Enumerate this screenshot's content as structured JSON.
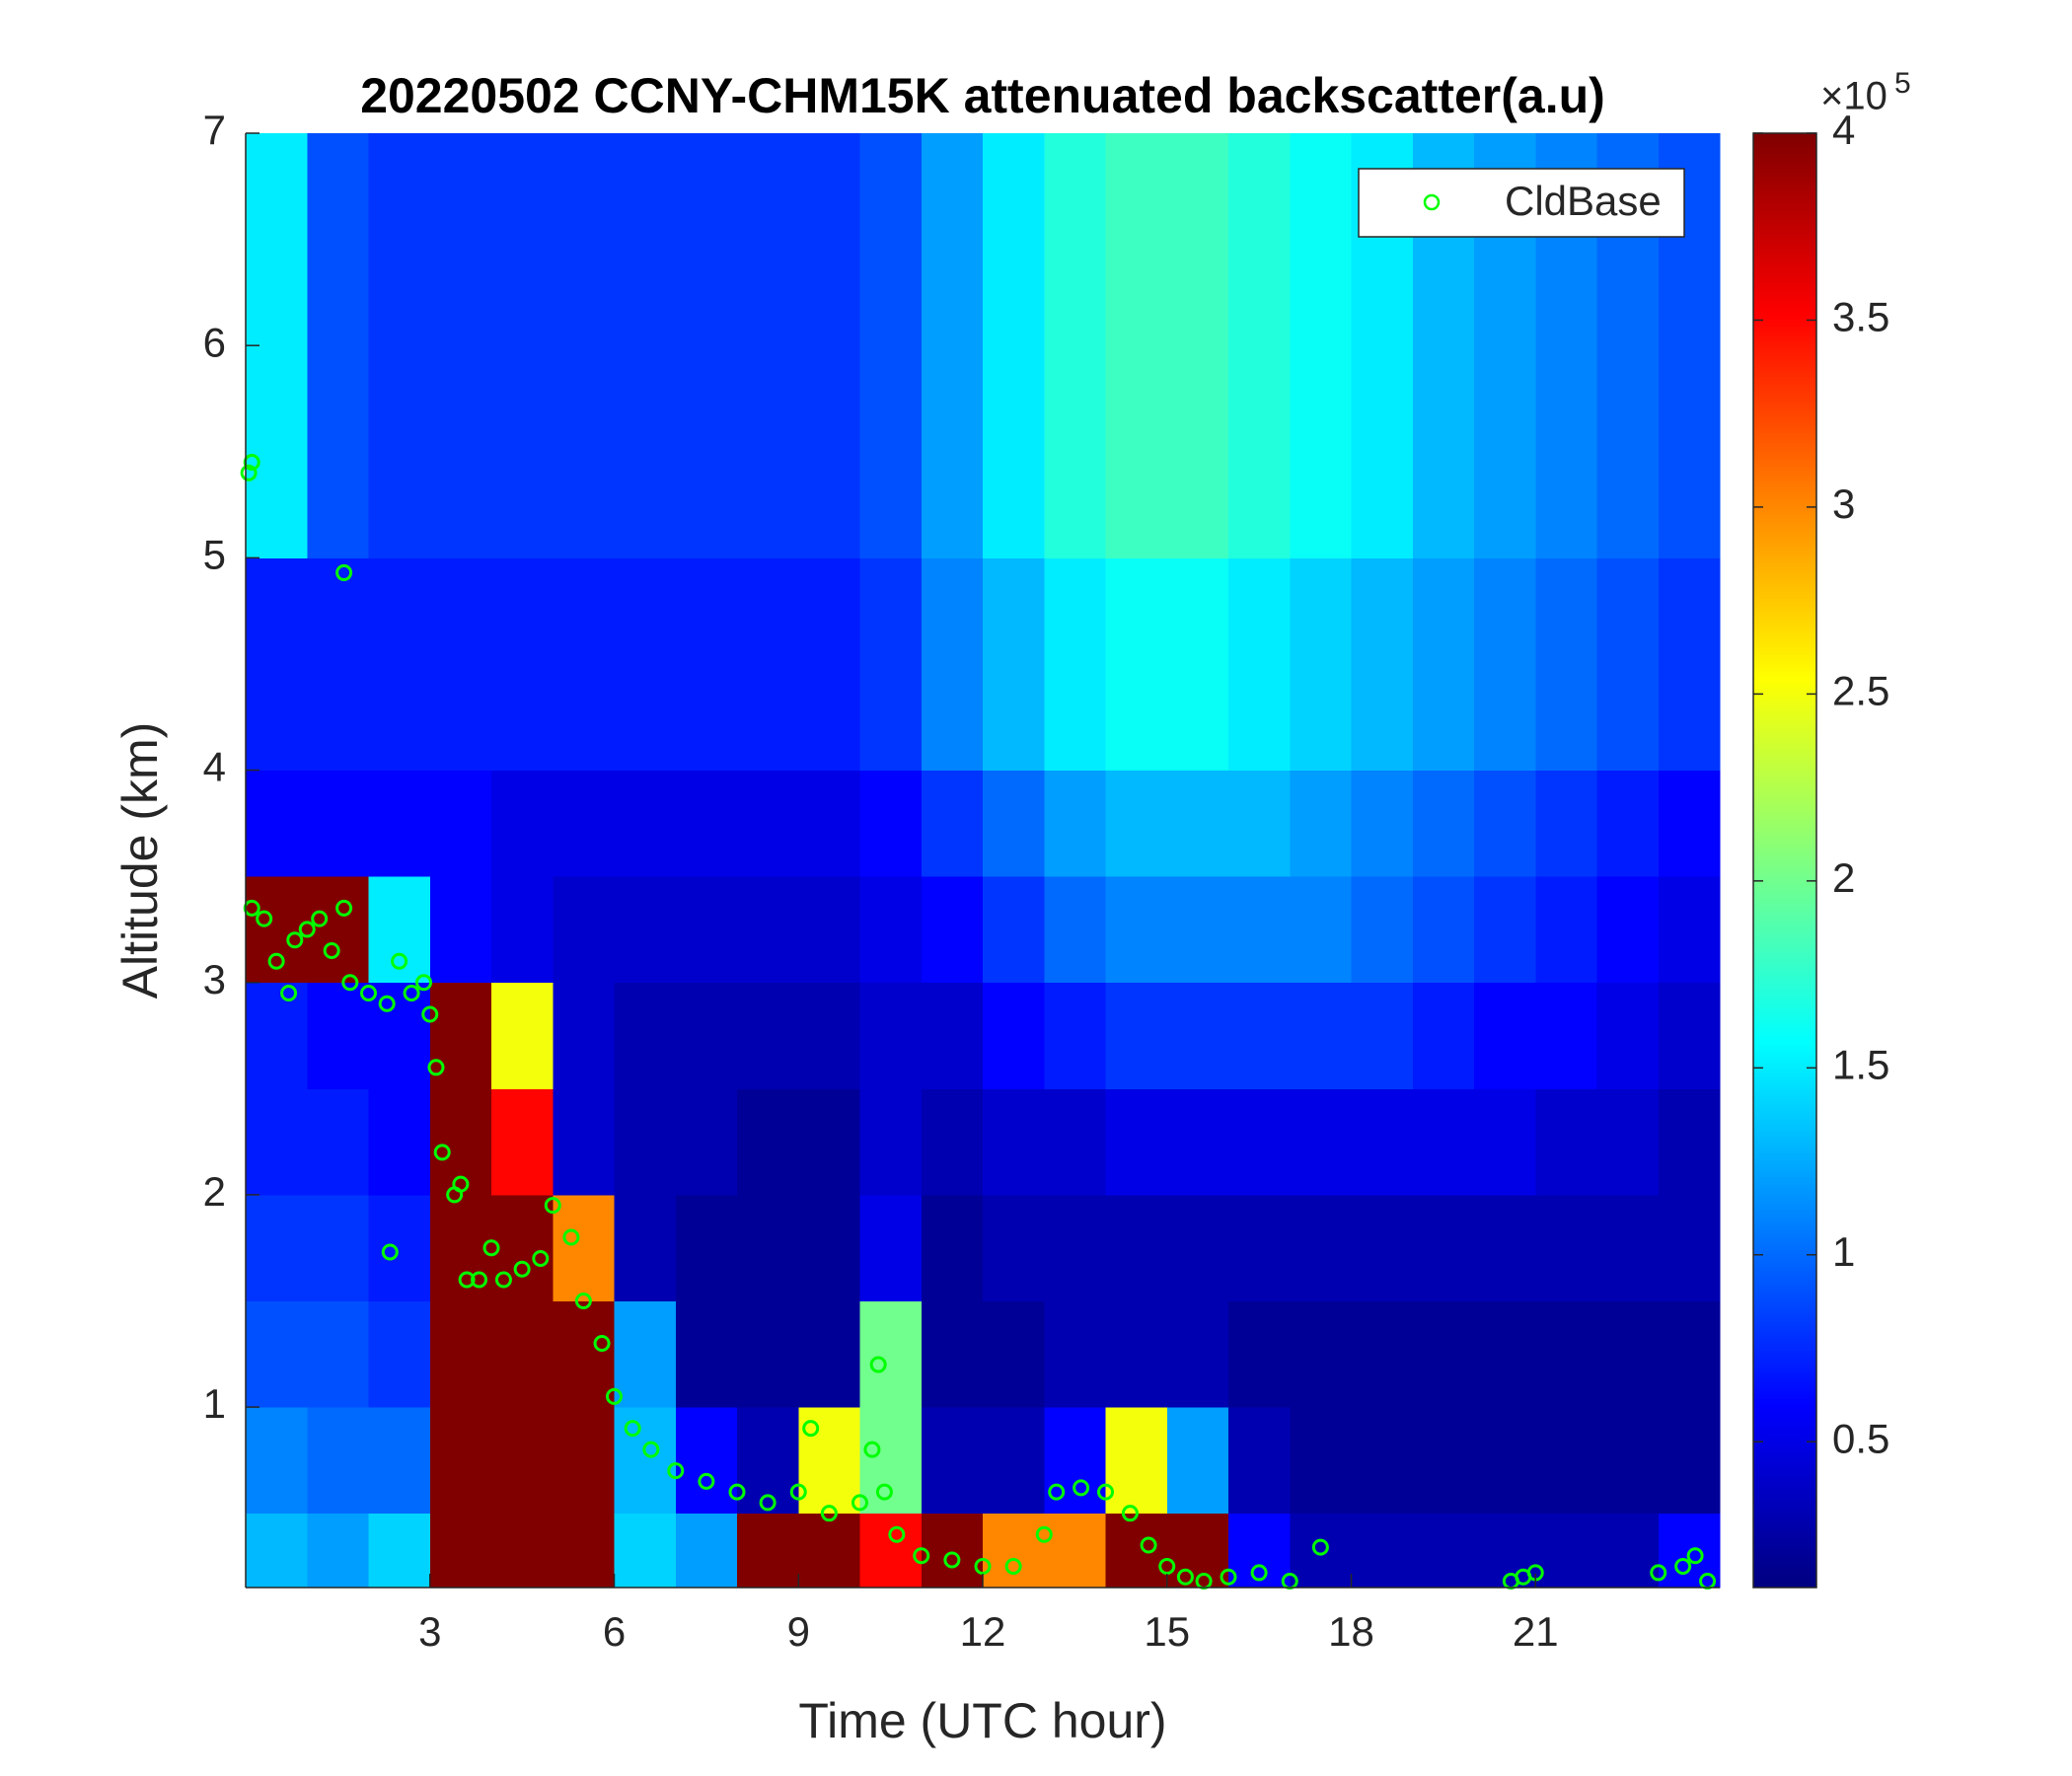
{
  "chart_data": {
    "type": "heatmap",
    "title": "20220502 CCNY-CHM15K attenuated backscatter(a.u)",
    "xlabel": "Time (UTC hour)",
    "ylabel": "Altitude (km)",
    "xlim": [
      0,
      24
    ],
    "ylim": [
      0.15,
      7
    ],
    "xticks": [
      3,
      6,
      9,
      12,
      15,
      18,
      21
    ],
    "yticks": [
      1,
      2,
      3,
      4,
      5,
      6,
      7
    ],
    "colormap": "jet",
    "clim": [
      0.11,
      4
    ],
    "cticks": [
      0.5,
      1,
      1.5,
      2,
      2.5,
      3,
      3.5,
      4
    ],
    "colorbar_scale": {
      "base": "×10",
      "power": "5"
    },
    "x_edges": [
      0,
      1,
      2,
      3,
      4,
      5,
      6,
      7,
      8,
      9,
      10,
      11,
      12,
      13,
      14,
      15,
      16,
      17,
      18,
      19,
      20,
      21,
      22,
      23,
      24
    ],
    "y_edges": [
      0.15,
      0.5,
      1,
      1.5,
      2,
      2.5,
      3,
      3.5,
      4,
      5,
      6,
      7
    ],
    "values": [
      [
        1.3,
        1.2,
        1.4,
        4,
        4,
        4,
        1.4,
        1.2,
        4,
        4,
        3.5,
        4,
        3,
        3,
        4,
        4,
        0.6,
        0.3,
        0.3,
        0.3,
        0.3,
        0.3,
        0.3,
        0.6
      ],
      [
        1.1,
        1.0,
        1.0,
        4,
        4,
        4,
        1.3,
        0.6,
        0.3,
        2.5,
        2,
        0.3,
        0.3,
        0.6,
        2.5,
        1.2,
        0.3,
        0.2,
        0.2,
        0.2,
        0.2,
        0.2,
        0.2,
        0.2
      ],
      [
        0.9,
        0.9,
        0.8,
        4,
        4,
        4,
        1.2,
        0.2,
        0.2,
        0.2,
        2,
        0.2,
        0.2,
        0.3,
        0.3,
        0.3,
        0.2,
        0.2,
        0.2,
        0.2,
        0.2,
        0.2,
        0.2,
        0.2
      ],
      [
        0.8,
        0.8,
        0.7,
        4,
        4,
        3,
        0.3,
        0.2,
        0.2,
        0.2,
        0.5,
        0.2,
        0.3,
        0.3,
        0.3,
        0.3,
        0.3,
        0.3,
        0.3,
        0.3,
        0.3,
        0.3,
        0.3,
        0.3
      ],
      [
        0.7,
        0.7,
        0.6,
        4,
        3.5,
        0.4,
        0.3,
        0.3,
        0.2,
        0.2,
        0.4,
        0.3,
        0.4,
        0.4,
        0.5,
        0.5,
        0.5,
        0.5,
        0.5,
        0.5,
        0.5,
        0.4,
        0.4,
        0.3
      ],
      [
        0.7,
        0.6,
        0.6,
        4,
        2.5,
        0.4,
        0.3,
        0.3,
        0.3,
        0.3,
        0.4,
        0.4,
        0.6,
        0.7,
        0.8,
        0.8,
        0.8,
        0.8,
        0.8,
        0.7,
        0.6,
        0.6,
        0.5,
        0.4
      ],
      [
        4,
        4,
        1.5,
        0.6,
        0.5,
        0.4,
        0.4,
        0.4,
        0.4,
        0.4,
        0.5,
        0.6,
        0.8,
        1,
        1.1,
        1.1,
        1.1,
        1.1,
        1,
        0.9,
        0.8,
        0.7,
        0.6,
        0.5
      ],
      [
        0.6,
        0.6,
        0.6,
        0.6,
        0.5,
        0.5,
        0.5,
        0.5,
        0.5,
        0.5,
        0.6,
        0.8,
        1,
        1.2,
        1.3,
        1.3,
        1.3,
        1.2,
        1.1,
        1,
        0.9,
        0.8,
        0.7,
        0.6
      ],
      [
        0.7,
        0.7,
        0.7,
        0.7,
        0.7,
        0.7,
        0.7,
        0.7,
        0.7,
        0.7,
        0.8,
        1.1,
        1.3,
        1.5,
        1.6,
        1.6,
        1.5,
        1.4,
        1.3,
        1.2,
        1.1,
        1,
        0.9,
        0.8
      ],
      [
        1.5,
        0.9,
        0.8,
        0.8,
        0.8,
        0.8,
        0.8,
        0.8,
        0.8,
        0.8,
        0.9,
        1.2,
        1.5,
        1.7,
        1.8,
        1.8,
        1.7,
        1.6,
        1.5,
        1.3,
        1.2,
        1.1,
        1,
        0.9
      ],
      [
        1.5,
        0.9,
        0.8,
        0.8,
        0.8,
        0.8,
        0.8,
        0.8,
        0.8,
        0.8,
        0.9,
        1.2,
        1.5,
        1.7,
        1.8,
        1.8,
        1.7,
        1.6,
        1.5,
        1.3,
        1.2,
        1.1,
        1,
        0.9
      ]
    ],
    "legend": "upper right",
    "series": [
      {
        "name": "CldBase",
        "type": "scatter",
        "color": "#00ff00",
        "x": [
          0.05,
          0.1,
          0.1,
          0.3,
          0.5,
          0.7,
          0.8,
          1,
          1.2,
          1.4,
          1.6,
          1.6,
          1.7,
          2,
          2.3,
          2.5,
          2.7,
          2.9,
          3.0,
          3.1,
          3.2,
          3.4,
          3.5,
          2.35,
          3.6,
          3.8,
          4,
          4.2,
          4.5,
          4.8,
          5,
          5.3,
          5.5,
          5.8,
          6,
          6.3,
          6.6,
          7,
          7.5,
          8,
          8.5,
          9,
          9.2,
          9.5,
          10,
          10.2,
          10.3,
          10.4,
          10.6,
          11,
          11.5,
          12,
          12.5,
          13,
          13.2,
          13.6,
          14,
          14.4,
          14.7,
          15,
          15.3,
          15.6,
          16,
          16.5,
          17,
          17.5,
          20.6,
          20.8,
          21,
          23,
          23.4,
          23.6,
          23.8
        ],
        "y": [
          5.4,
          5.45,
          3.35,
          3.3,
          3.1,
          2.95,
          3.2,
          3.25,
          3.3,
          3.15,
          3.35,
          4.93,
          3.0,
          2.95,
          2.9,
          3.1,
          2.95,
          3.0,
          2.85,
          2.6,
          2.2,
          2.0,
          2.05,
          1.73,
          1.6,
          1.6,
          1.75,
          1.6,
          1.65,
          1.7,
          1.95,
          1.8,
          1.5,
          1.3,
          1.05,
          0.9,
          0.8,
          0.7,
          0.65,
          0.6,
          0.55,
          0.6,
          0.9,
          0.5,
          0.55,
          0.8,
          1.2,
          0.6,
          0.4,
          0.3,
          0.28,
          0.25,
          0.25,
          0.4,
          0.6,
          0.62,
          0.6,
          0.5,
          0.35,
          0.25,
          0.2,
          0.18,
          0.2,
          0.22,
          0.18,
          0.34,
          0.18,
          0.2,
          0.22,
          0.22,
          0.25,
          0.3,
          0.18
        ]
      }
    ]
  }
}
